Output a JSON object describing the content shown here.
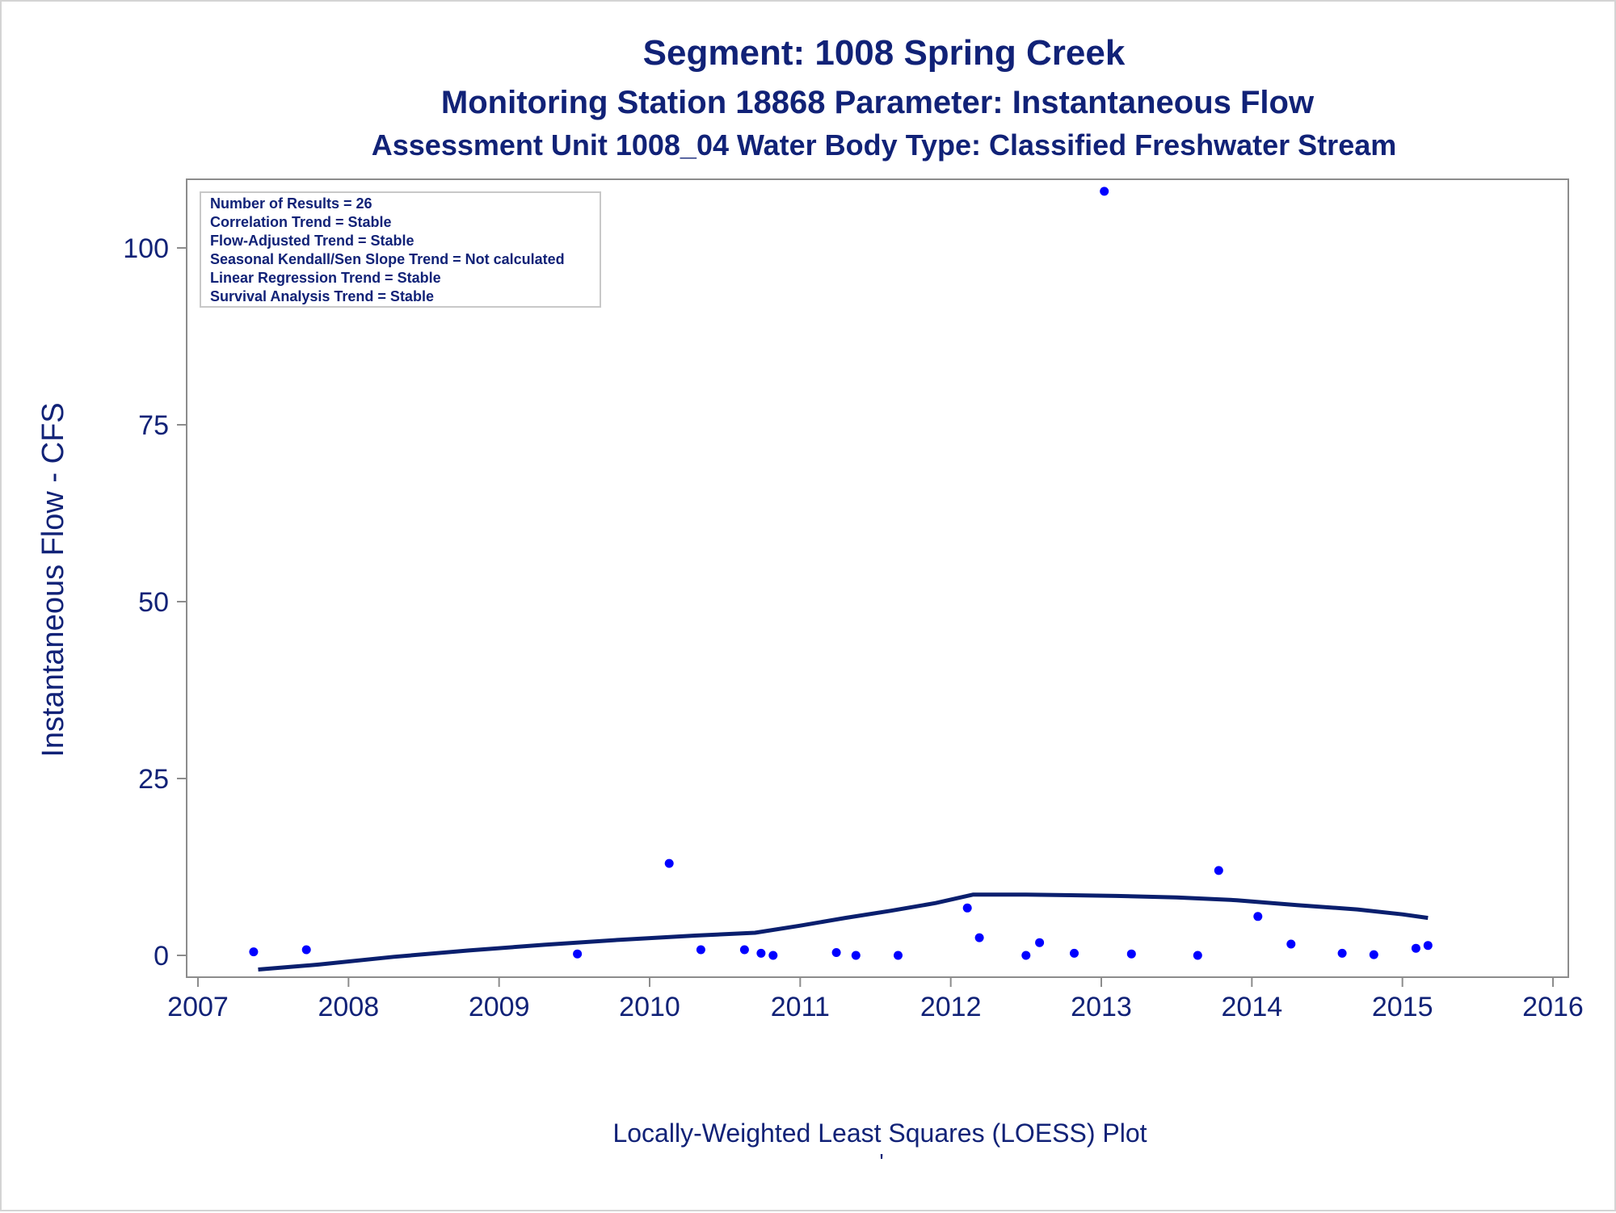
{
  "chart_data": {
    "type": "scatter",
    "title": "Segment: 1008  Spring Creek",
    "subtitle": "Monitoring Station 18868 Parameter: Instantaneous Flow",
    "subtitle2": "Assessment Unit 1008_04   Water Body Type: Classified Freshwater Stream",
    "xlabel": "",
    "ylabel": "Instantaneous Flow - CFS",
    "footnote": "Locally-Weighted Least Squares (LOESS) Plot",
    "footnote_mark": "'",
    "xlim": [
      2007,
      2016
    ],
    "ylim": [
      -3,
      110
    ],
    "xticks": [
      2007,
      2008,
      2009,
      2010,
      2011,
      2012,
      2013,
      2014,
      2015,
      2016
    ],
    "yticks": [
      0,
      25,
      50,
      75,
      100
    ],
    "grid": false,
    "colors": {
      "points": "#0000ff",
      "loess": "#0a1f6e",
      "text": "#112277",
      "axis": "#8c8c8c"
    },
    "series": [
      {
        "type": "scatter",
        "x": [
          2007.37,
          2007.72,
          2009.52,
          2010.13,
          2010.34,
          2010.63,
          2010.74,
          2010.82,
          2011.24,
          2011.37,
          2011.65,
          2012.11,
          2012.19,
          2012.5,
          2012.59,
          2012.82,
          2013.02,
          2013.2,
          2013.64,
          2013.78,
          2014.04,
          2014.26,
          2014.6,
          2014.81,
          2015.09,
          2015.17
        ],
        "y": [
          0.5,
          0.8,
          0.2,
          13,
          0.8,
          0.8,
          0.3,
          0,
          0.4,
          0,
          0,
          6.7,
          2.5,
          0,
          1.8,
          0.3,
          108,
          0.2,
          0,
          12,
          5.5,
          1.6,
          0.3,
          0.1,
          1.0,
          1.4
        ]
      },
      {
        "type": "line",
        "x": [
          2007.4,
          2007.8,
          2008.3,
          2008.8,
          2009.3,
          2009.8,
          2010.3,
          2010.7,
          2011.0,
          2011.3,
          2011.6,
          2011.9,
          2012.15,
          2012.5,
          2012.8,
          2013.1,
          2013.5,
          2013.9,
          2014.3,
          2014.7,
          2015.0,
          2015.17
        ],
        "y": [
          -2.0,
          -1.3,
          -0.2,
          0.7,
          1.5,
          2.2,
          2.8,
          3.2,
          4.2,
          5.3,
          6.3,
          7.4,
          8.6,
          8.6,
          8.5,
          8.4,
          8.2,
          7.8,
          7.1,
          6.5,
          5.8,
          5.3
        ]
      }
    ],
    "stats_box": {
      "lines": [
        "Number of Results = 26",
        "Correlation Trend = Stable",
        "Flow-Adjusted Trend = Stable",
        "Seasonal Kendall/Sen Slope Trend = Not calculated",
        "Linear Regression Trend = Stable",
        "Survival Analysis Trend = Stable"
      ]
    }
  }
}
